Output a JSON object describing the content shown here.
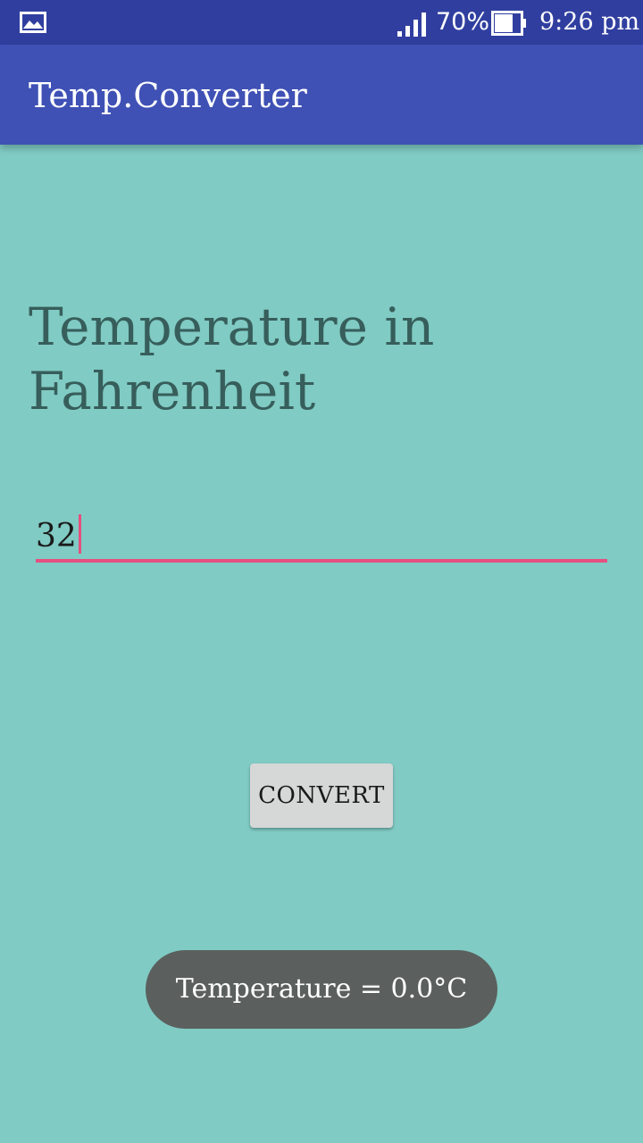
{
  "status_bar": {
    "battery_percent": "70%",
    "time": "9:26 pm",
    "icons": [
      "gallery-icon",
      "signal-icon",
      "battery-icon"
    ]
  },
  "app_bar": {
    "title": "Temp.Converter"
  },
  "main": {
    "heading": "Temperature in Fahrenheit",
    "input_value": "32",
    "convert_label": "CONVERT"
  },
  "toast": {
    "text": "Temperature = 0.0°C"
  },
  "colors": {
    "background": "#80cbc4",
    "status_bar": "#303f9f",
    "app_bar": "#3f51b5",
    "accent": "#e5507f",
    "toast": "#5b605e"
  }
}
